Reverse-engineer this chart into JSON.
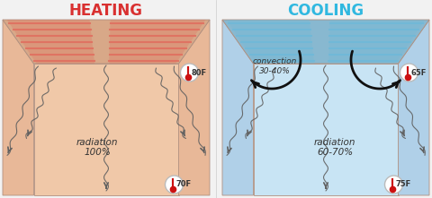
{
  "title_heating": "HEATING",
  "title_cooling": "COOLING",
  "title_color_heating": "#d93030",
  "title_color_cooling": "#30b8e0",
  "bg_color": "#f2f2f2",
  "left_room_bg": "#f0c8a8",
  "left_wall_side": "#e8b898",
  "left_ceiling_face": "#d8a888",
  "left_panel_color": "#e07060",
  "right_room_bg": "#c8e4f4",
  "right_wall_side": "#b0d0e8",
  "right_ceiling_face": "#88b8d0",
  "right_panel_color": "#70b8d8",
  "wave_color": "#606060",
  "arrow_color": "#222222",
  "convection_arrow_color": "#111111",
  "thermo_border": "#bbbbbb",
  "thermo_mercury": "#cc1111",
  "thermo_stem": "#888888",
  "radiation_heating": "radiation\n100%",
  "radiation_cooling": "radiation\n60-70%",
  "convection_text": "convection\n30-40%",
  "temp_h_top": "80F",
  "temp_h_bot": "70F",
  "temp_c_top": "65F",
  "temp_c_bot": "75F"
}
